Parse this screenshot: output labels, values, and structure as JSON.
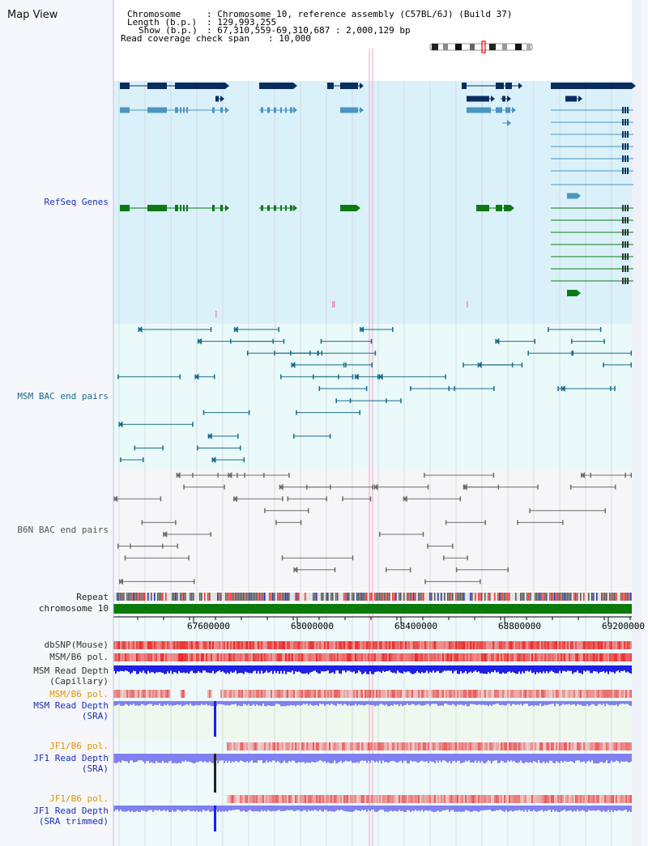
{
  "page": {
    "title": "Map View",
    "chromosome_label": "Chromosome",
    "chromosome_value": ": Chromosome 10, reference assembly (C57BL/6J) (Build 37)",
    "length_label": "Length (b.p.)",
    "length_value": ": 129,993,255",
    "show_label": "Show (b.p.)",
    "show_value": ": 67,310,559-69,310,687 : 2,000,129 bp",
    "coverage_label": "Read coverage check span",
    "coverage_value": ": 10,000"
  },
  "tracks": {
    "refseq": "RefSeq Genes",
    "msm_bac": "MSM BAC end pairs",
    "b6n_bac": "B6N BAC end pairs",
    "repeat": "Repeat",
    "chromosome": "chromosome 10",
    "dbsnp": "dbSNP(Mouse)",
    "msm_b6_pol_1": "MSM/B6 pol.",
    "msm_depth_cap_1": "MSM Read Depth",
    "msm_depth_cap_2": "(Capillary)",
    "msm_b6_pol_2": "MSM/B6 pol.",
    "msm_depth_sra_1": "MSM Read Depth",
    "msm_depth_sra_2": "(SRA)",
    "jf1_pol_1": "JF1/B6 pol.",
    "jf1_depth_sra_1": "JF1 Read Depth",
    "jf1_depth_sra_2": "(SRA)",
    "jf1_pol_2": "JF1/B6 pol.",
    "jf1_depth_trim_1": "JF1 Read Depth",
    "jf1_depth_trim_2": "(SRA trimmed)"
  },
  "axis": {
    "ticks": [
      "67600000",
      "68000000",
      "68400000",
      "68800000",
      "69200000"
    ]
  },
  "colors": {
    "refseq_bg": "#dbf1fa",
    "refseq_dark": "#0a2d5e",
    "refseq_mid": "#4a95c2",
    "refseq_green": "#0b7a14",
    "msm_bac": "#1a6b8a",
    "b6n_bac": "#6d6d6d",
    "chromosome_bar": "#0a7a0a",
    "depth_blue": "#1f1fe6",
    "depth_light": "#8080f0"
  }
}
